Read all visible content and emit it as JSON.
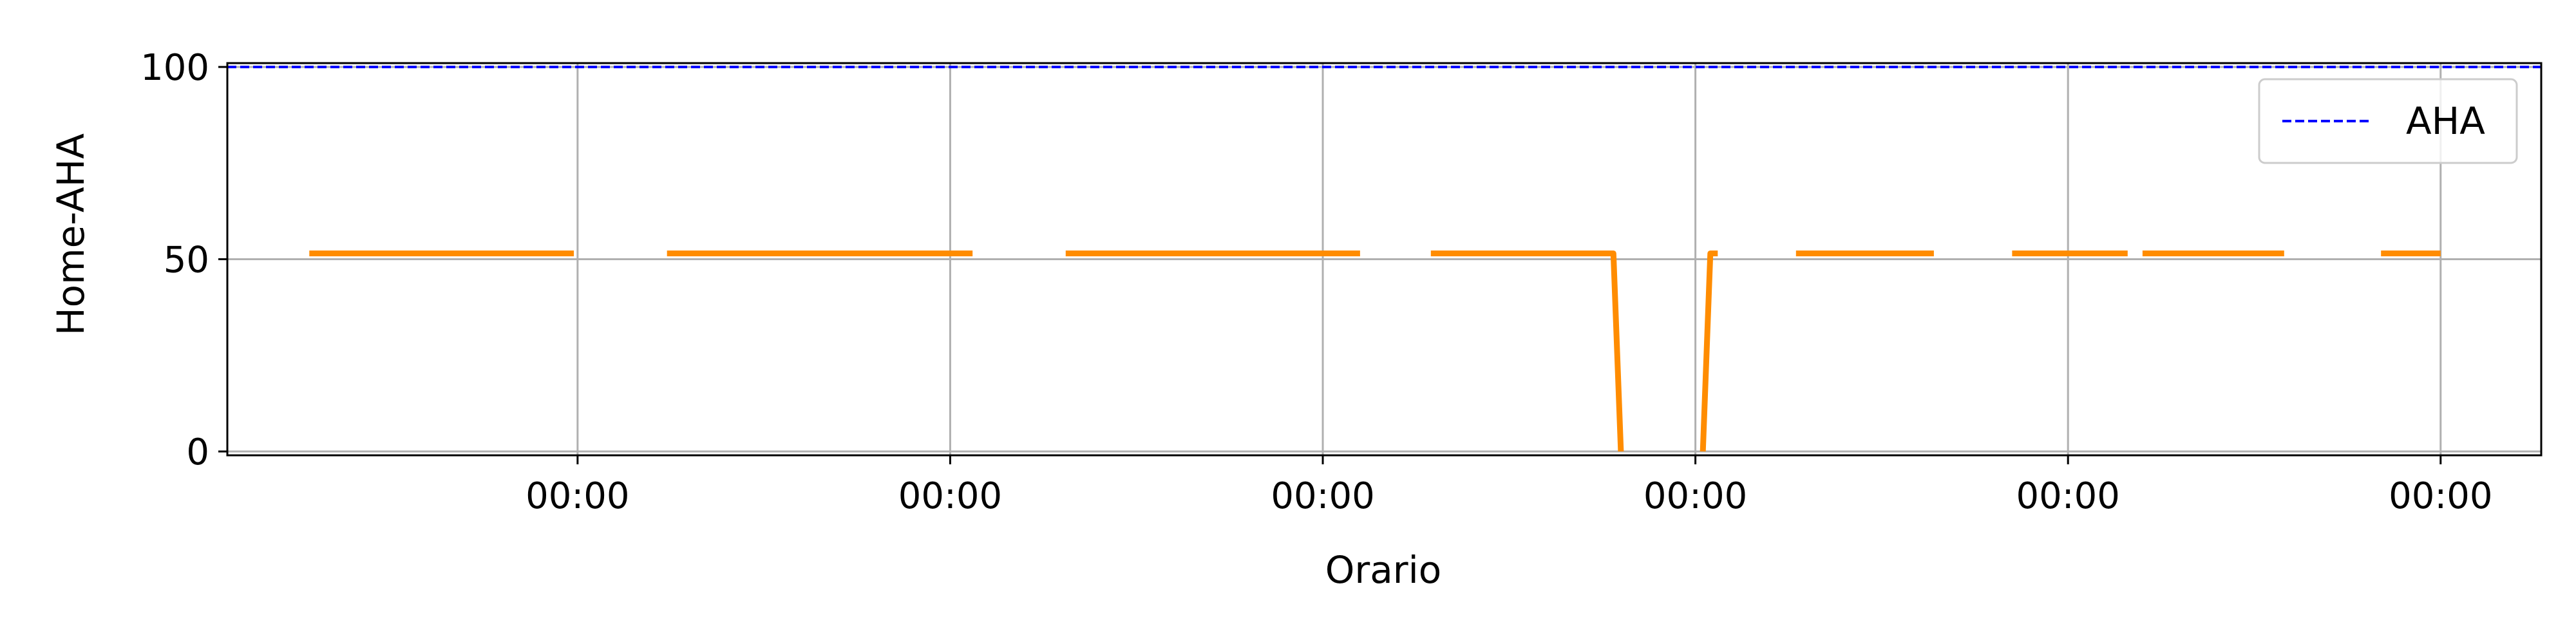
{
  "chart_data": {
    "type": "line",
    "title": "",
    "xlabel": "Orario",
    "ylabel": "Home-AHA",
    "grid": true,
    "legend": {
      "placement": "top-right",
      "entries": [
        "AHA"
      ]
    },
    "x_ticks": [
      {
        "value": 1,
        "label": "00:00"
      },
      {
        "value": 2,
        "label": "00:00"
      },
      {
        "value": 3,
        "label": "00:00"
      },
      {
        "value": 4,
        "label": "00:00"
      },
      {
        "value": 5,
        "label": "00:00"
      },
      {
        "value": 6,
        "label": "00:00"
      }
    ],
    "y_ticks": [
      0,
      50,
      100
    ],
    "xlim": [
      0.06,
      6.27
    ],
    "ylim": [
      -1,
      101
    ],
    "series": [
      {
        "name": "AHA",
        "style": "dashed",
        "color": "#0000ff",
        "points": [
          [
            0.06,
            100
          ],
          [
            6.27,
            100
          ]
        ]
      },
      {
        "name": "",
        "style": "solid",
        "color": "#ff8c00",
        "segments": [
          [
            [
              0.28,
              51.5
            ],
            [
              0.99,
              51.5
            ]
          ],
          [
            [
              1.24,
              51.5
            ],
            [
              2.06,
              51.5
            ]
          ],
          [
            [
              2.31,
              51.5
            ],
            [
              3.1,
              51.5
            ]
          ],
          [
            [
              3.29,
              51.5
            ],
            [
              3.78,
              51.5
            ],
            [
              3.8,
              0
            ]
          ],
          [
            [
              4.02,
              0
            ],
            [
              4.04,
              51.5
            ],
            [
              4.06,
              51.5
            ]
          ],
          [
            [
              4.27,
              51.5
            ],
            [
              4.64,
              51.5
            ]
          ],
          [
            [
              4.85,
              51.5
            ],
            [
              5.16,
              51.5
            ]
          ],
          [
            [
              5.2,
              51.5
            ],
            [
              5.58,
              51.5
            ]
          ],
          [
            [
              5.84,
              51.5
            ],
            [
              6.0,
              51.5
            ]
          ]
        ]
      }
    ]
  }
}
